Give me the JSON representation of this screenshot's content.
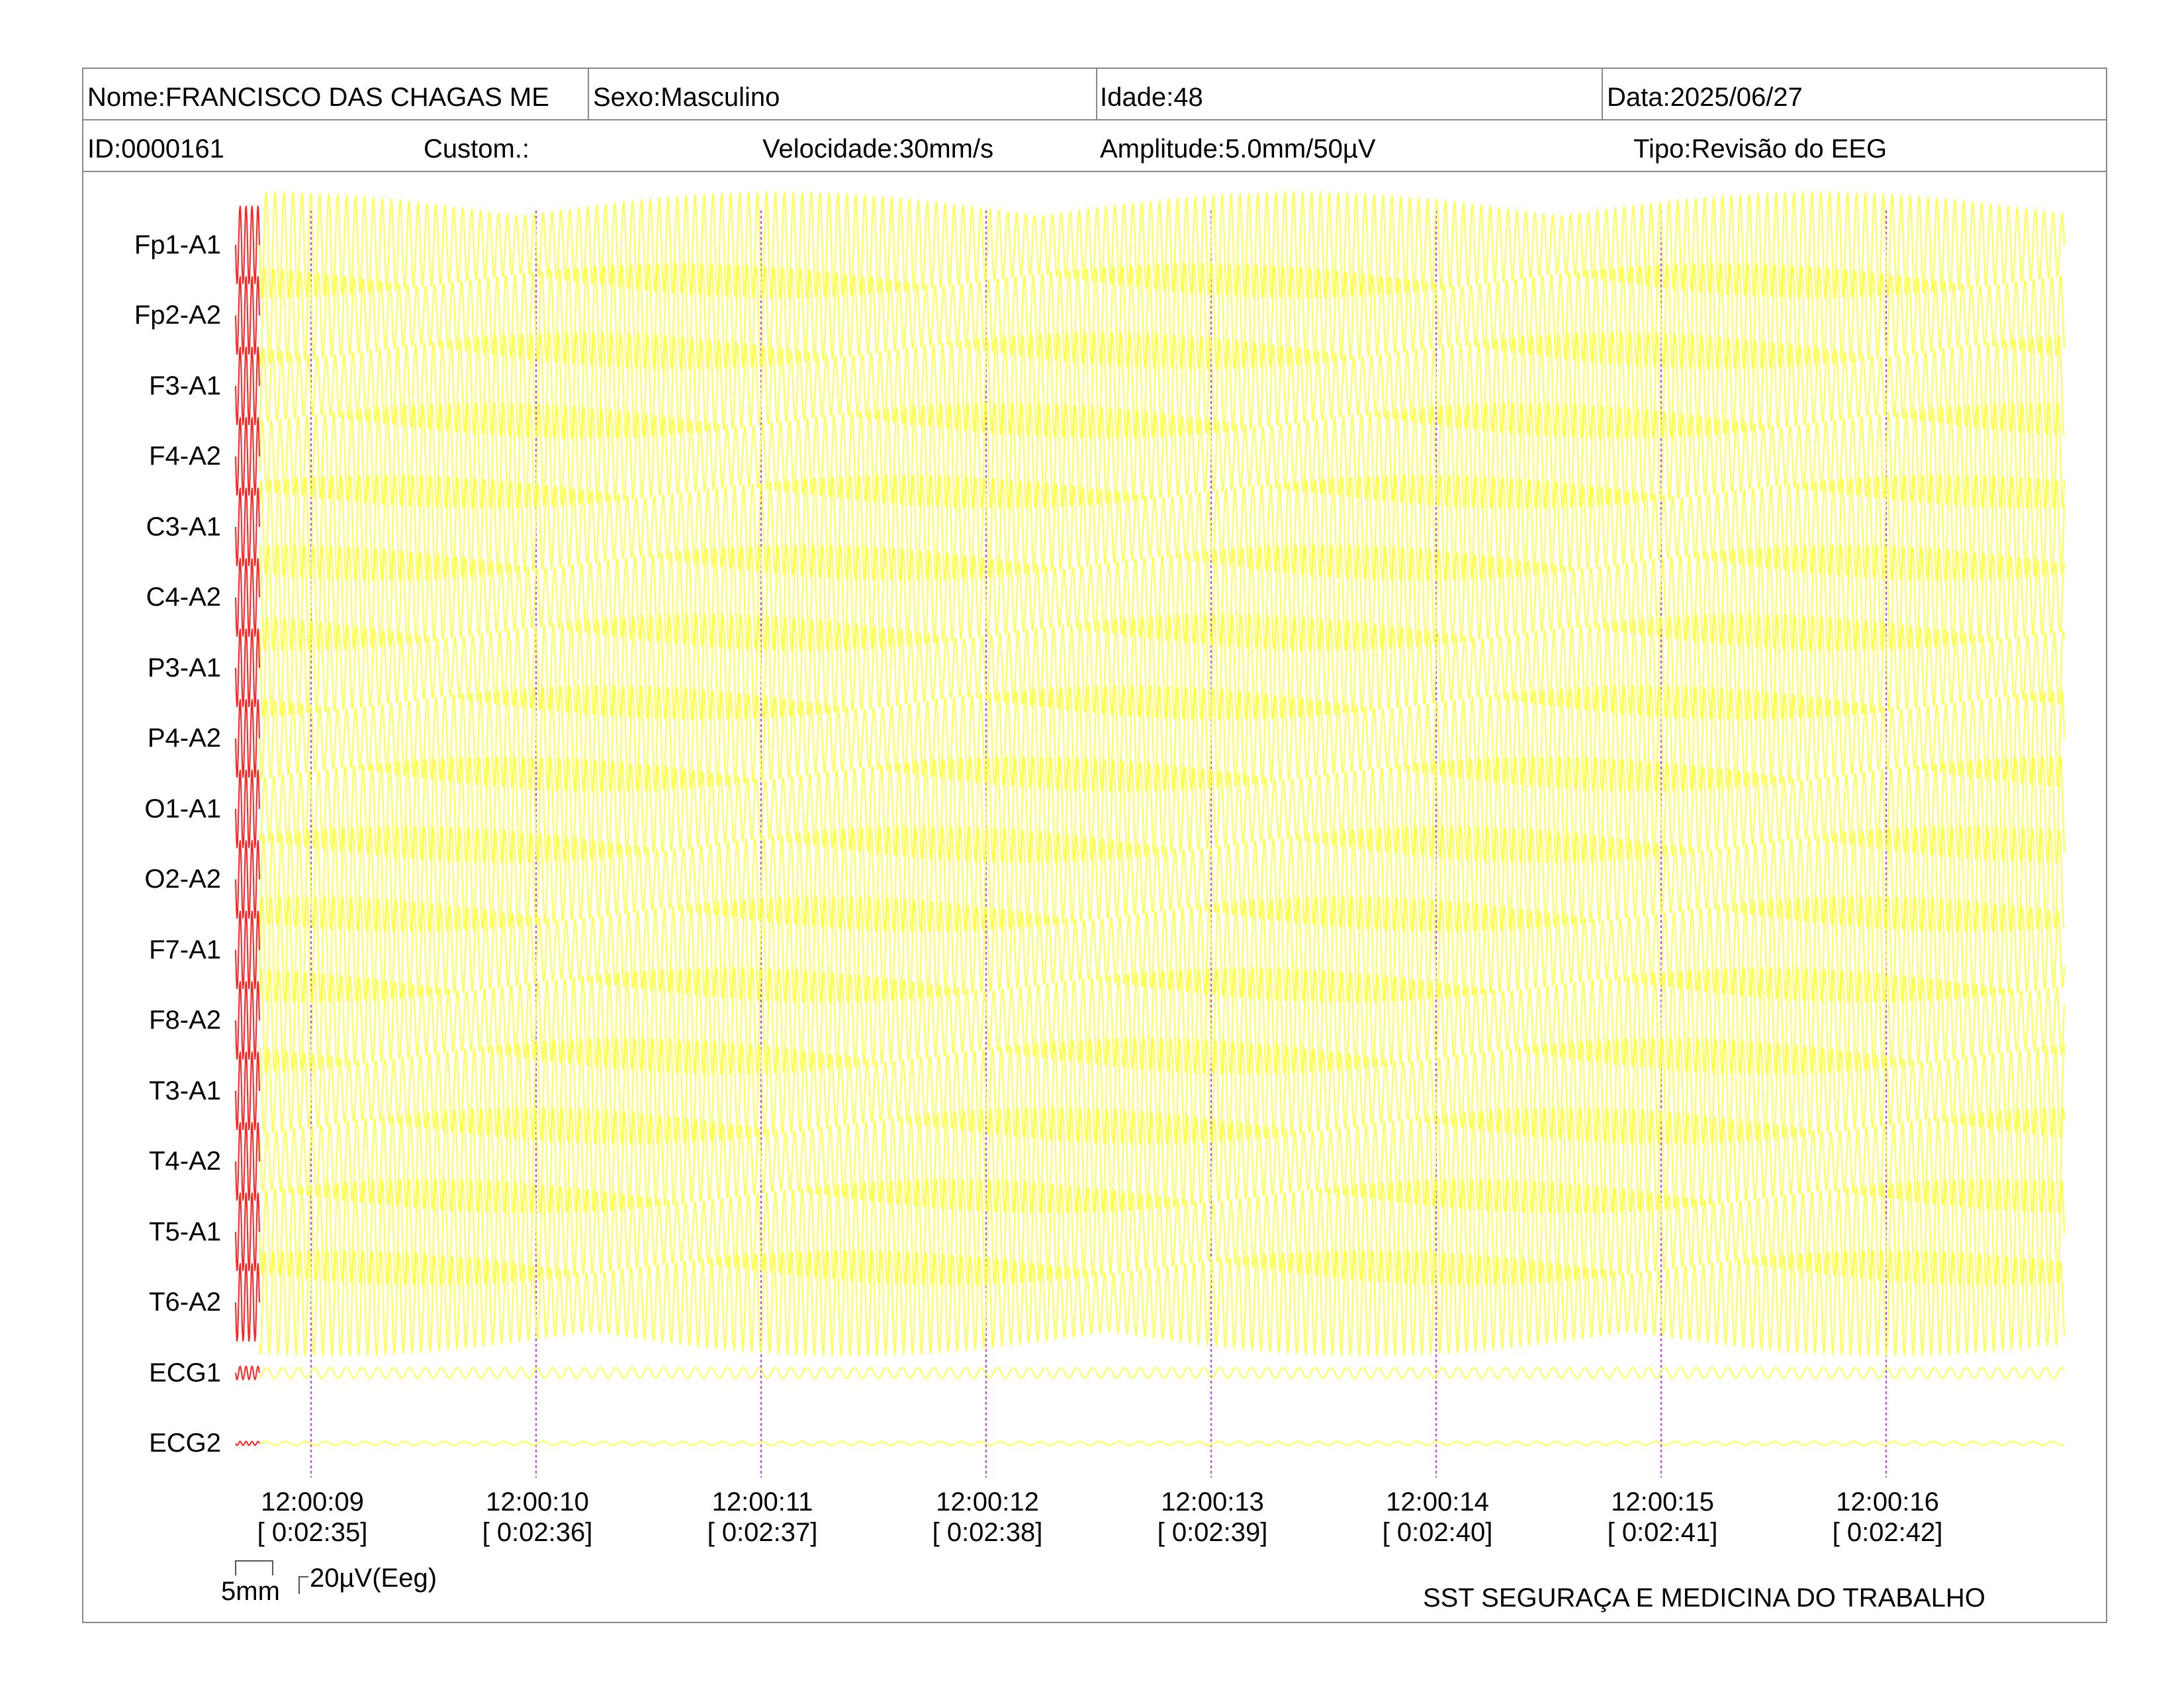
{
  "header": {
    "name": "Nome:FRANCISCO DAS CHAGAS ME",
    "sex": "Sexo:Masculino",
    "age": "Idade:48",
    "date": "Data:2025/06/27",
    "id": "ID:0000161",
    "custom": "Custom.:",
    "speed": "Velocidade:30mm/s",
    "amplitude": "Amplitude:5.0mm/50µV",
    "type": "Tipo:Revisão do EEG"
  },
  "channels": [
    "Fp1-A1",
    "Fp2-A2",
    "F3-A1",
    "F4-A2",
    "C3-A1",
    "C4-A2",
    "P3-A1",
    "P4-A2",
    "O1-A1",
    "O2-A2",
    "F7-A1",
    "F8-A2",
    "T3-A1",
    "T4-A2",
    "T5-A1",
    "T6-A2",
    "ECG1",
    "ECG2"
  ],
  "time_marks": [
    {
      "clock": "12:00:09",
      "elapsed": "[ 0:02:35]"
    },
    {
      "clock": "12:00:10",
      "elapsed": "[ 0:02:36]"
    },
    {
      "clock": "12:00:11",
      "elapsed": "[ 0:02:37]"
    },
    {
      "clock": "12:00:12",
      "elapsed": "[ 0:02:38]"
    },
    {
      "clock": "12:00:13",
      "elapsed": "[ 0:02:39]"
    },
    {
      "clock": "12:00:14",
      "elapsed": "[ 0:02:40]"
    },
    {
      "clock": "12:00:15",
      "elapsed": "[ 0:02:41]"
    },
    {
      "clock": "12:00:16",
      "elapsed": "[ 0:02:42]"
    }
  ],
  "scale": {
    "time_label": "5mm",
    "amp_label": "20µV(Eeg)"
  },
  "footer": {
    "company": "SST SEGURAÇA E MEDICINA DO TRABALHO"
  },
  "colors": {
    "trace": "#ffff33",
    "calibration": "#ff2020",
    "time_marker": "#cc33ff",
    "border": "#888888"
  }
}
